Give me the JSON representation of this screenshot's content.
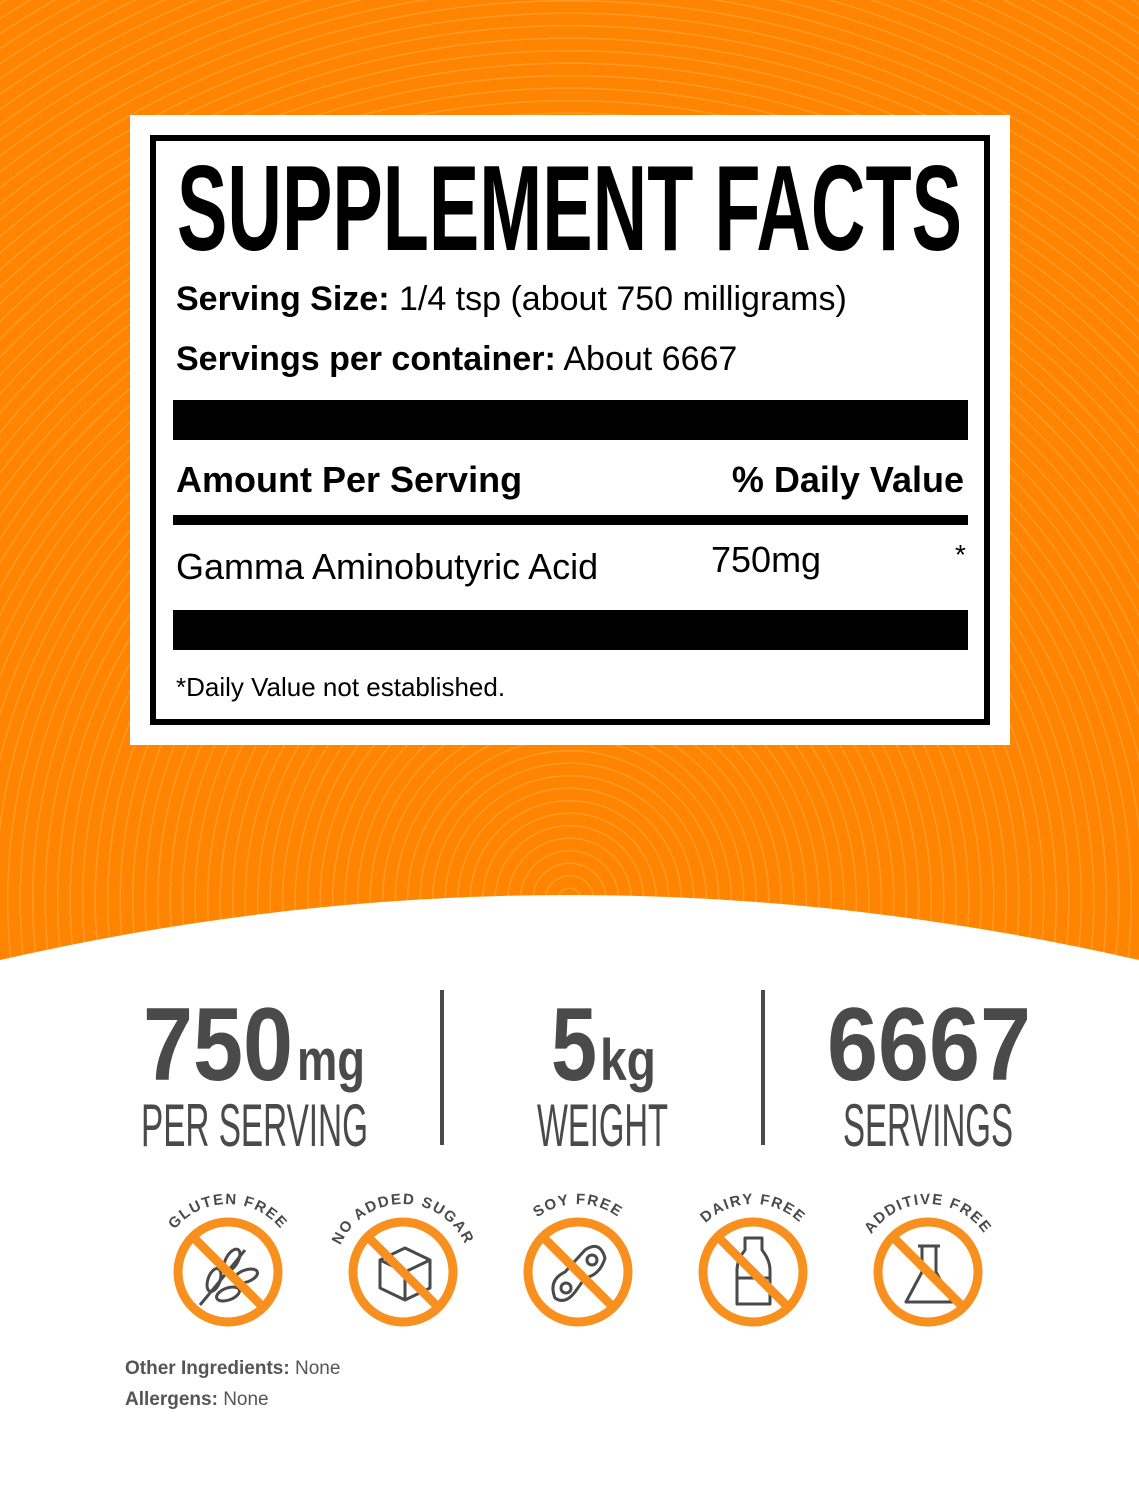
{
  "colors": {
    "orange": "#ff8600",
    "badge_orange": "#f7901e",
    "stat_gray": "#4a4a4a",
    "black": "#000000"
  },
  "label": {
    "title": "SUPPLEMENT FACTS",
    "serving_size_label": "Serving Size:",
    "serving_size_value": "1/4 tsp (about 750 milligrams)",
    "servings_label": "Servings per container:",
    "servings_value": "About 6667",
    "amount_header": "Amount Per Serving",
    "dv_header": "% Daily Value",
    "ingredient": {
      "name": "Gamma Aminobutyric Acid",
      "amount": "750mg",
      "dv": "*"
    },
    "footnote": "*Daily Value not established."
  },
  "stats": [
    {
      "value": "750",
      "unit": "mg",
      "caption": "PER SERVING"
    },
    {
      "value": "5",
      "unit": "kg",
      "caption": "WEIGHT"
    },
    {
      "value": "6667",
      "unit": "",
      "caption": "SERVINGS"
    }
  ],
  "badges": [
    {
      "text": "GLUTEN FREE",
      "icon": "wheat-icon"
    },
    {
      "text": "NO ADDED SUGAR",
      "icon": "sugar-cube-icon"
    },
    {
      "text": "SOY FREE",
      "icon": "soybean-icon"
    },
    {
      "text": "DAIRY FREE",
      "icon": "milk-bottle-icon"
    },
    {
      "text": "ADDITIVE FREE",
      "icon": "flask-icon"
    }
  ],
  "footer": {
    "other_label": "Other Ingredients:",
    "other_value": "None",
    "allergens_label": "Allergens:",
    "allergens_value": "None"
  }
}
